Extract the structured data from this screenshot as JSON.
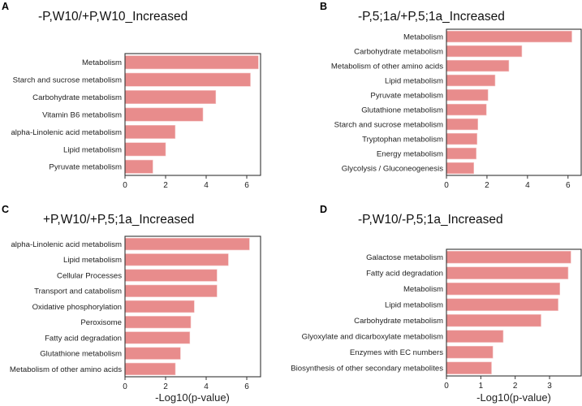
{
  "colors": {
    "bar": "#e88c8c",
    "bar_edge": "#f4c4c4",
    "axis": "#333333"
  },
  "chart_data": [
    {
      "type": "bar",
      "orientation": "horizontal",
      "panel": "A",
      "title": "-P,W10/+P,W10_Increased",
      "xlabel": "",
      "xlim": [
        0,
        6.68
      ],
      "xticks": [
        0,
        2,
        4,
        6
      ],
      "categories": [
        "Metabolism",
        "Starch and sucrose metabolism",
        "Carbohydrate metabolism",
        "Vitamin B6 metabolism",
        "alpha-Linolenic acid metabolism",
        "Lipid metabolism",
        "Pyruvate metabolism"
      ],
      "values": [
        6.57,
        6.18,
        4.47,
        3.84,
        2.47,
        2.0,
        1.37
      ]
    },
    {
      "type": "bar",
      "orientation": "horizontal",
      "panel": "B",
      "title": "-P,5;1a/+P,5;1a_Increased",
      "xlabel": "",
      "xlim": [
        0,
        6.65
      ],
      "xticks": [
        0,
        2,
        4,
        6
      ],
      "categories": [
        "Metabolism",
        "Carbohydrate metabolism",
        "Metabolism of other amino acids",
        "Lipid metabolism",
        "Pyruvate metabolism",
        "Glutathione metabolism",
        "Starch and sucrose metabolism",
        "Tryptophan metabolism",
        "Energy metabolism",
        "Glycolysis / Gluconeogenesis"
      ],
      "values": [
        6.19,
        3.72,
        3.08,
        2.4,
        2.05,
        1.97,
        1.55,
        1.51,
        1.47,
        1.35
      ]
    },
    {
      "type": "bar",
      "orientation": "horizontal",
      "panel": "C",
      "title": "+P,W10/+P,5;1a_Increased",
      "xlabel": "-Log10(p-value)",
      "xlim": [
        0,
        6.68
      ],
      "xticks": [
        0,
        2,
        4,
        6
      ],
      "categories": [
        "alpha-Linolenic acid metabolism",
        "Lipid metabolism",
        "Cellular Processes",
        "Transport and catabolism",
        "Oxidative phosphorylation",
        "Peroxisome",
        "Fatty acid degradation",
        "Glutathione metabolism",
        "Metabolism of other amino acids"
      ],
      "values": [
        6.13,
        5.09,
        4.53,
        4.53,
        3.41,
        3.24,
        3.19,
        2.73,
        2.48
      ]
    },
    {
      "type": "bar",
      "orientation": "horizontal",
      "panel": "D",
      "title": "-P,W10/-P,5;1a_Increased",
      "xlabel": "-Log10(p-value)",
      "xlim": [
        0,
        3.92
      ],
      "xticks": [
        0,
        1,
        2,
        3
      ],
      "categories": [
        "Galactose metabolism",
        "Fatty acid degradation",
        "Metabolism",
        "Lipid metabolism",
        "Carbohydrate metabolism",
        "Glyoxylate and dicarboxylate metabolism",
        "Enzymes with EC numbers",
        "Biosynthesis of other secondary metabolites"
      ],
      "values": [
        3.62,
        3.54,
        3.3,
        3.25,
        2.75,
        1.65,
        1.35,
        1.31
      ]
    }
  ]
}
